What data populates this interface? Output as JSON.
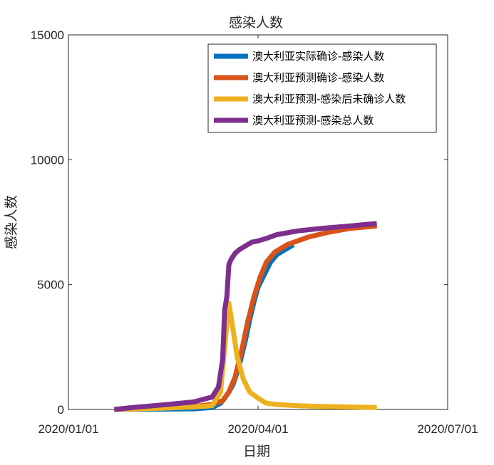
{
  "chart_data": {
    "type": "line",
    "title": "感染人数",
    "xlabel": "日期",
    "ylabel": "感染人数",
    "xlim": [
      "2020-01-01",
      "2020-07-01"
    ],
    "ylim": [
      0,
      15000
    ],
    "xticks": [
      "2020/01/01",
      "2020/04/01",
      "2020/07/01"
    ],
    "yticks": [
      "0",
      "5000",
      "10000",
      "15000"
    ],
    "grid": false,
    "legend_position": "top-right",
    "series": [
      {
        "name": "澳大利亚实际确诊-感染人数",
        "color": "#0072BD",
        "x": [
          "2020-01-23",
          "2020-02-01",
          "2020-02-15",
          "2020-03-01",
          "2020-03-10",
          "2020-03-14",
          "2020-03-16",
          "2020-03-18",
          "2020-03-20",
          "2020-03-22",
          "2020-03-24",
          "2020-03-26",
          "2020-03-28",
          "2020-03-30",
          "2020-04-01",
          "2020-04-04",
          "2020-04-07",
          "2020-04-10",
          "2020-04-13",
          "2020-04-16",
          "2020-04-18"
        ],
        "y": [
          0,
          10,
          15,
          25,
          80,
          250,
          450,
          700,
          1000,
          1500,
          2100,
          2800,
          3600,
          4300,
          4900,
          5400,
          5900,
          6200,
          6350,
          6500,
          6600
        ]
      },
      {
        "name": "澳大利亚预测确诊-感染人数",
        "color": "#D95319",
        "x": [
          "2020-01-23",
          "2020-02-01",
          "2020-02-15",
          "2020-03-01",
          "2020-03-10",
          "2020-03-15",
          "2020-03-18",
          "2020-03-21",
          "2020-03-24",
          "2020-03-27",
          "2020-03-30",
          "2020-04-02",
          "2020-04-05",
          "2020-04-09",
          "2020-04-15",
          "2020-04-25",
          "2020-05-05",
          "2020-05-15",
          "2020-05-28"
        ],
        "y": [
          0,
          20,
          60,
          120,
          200,
          350,
          700,
          1300,
          2300,
          3500,
          4500,
          5300,
          5900,
          6300,
          6600,
          6900,
          7100,
          7250,
          7350
        ]
      },
      {
        "name": "澳大利亚预测-感染后未确诊人数",
        "color": "#EDB120",
        "x": [
          "2020-01-23",
          "2020-02-01",
          "2020-02-15",
          "2020-03-01",
          "2020-03-10",
          "2020-03-14",
          "2020-03-16",
          "2020-03-18",
          "2020-03-20",
          "2020-03-22",
          "2020-03-25",
          "2020-03-28",
          "2020-04-01",
          "2020-04-05",
          "2020-04-10",
          "2020-04-20",
          "2020-05-01",
          "2020-05-15",
          "2020-05-28"
        ],
        "y": [
          0,
          20,
          50,
          100,
          150,
          700,
          2500,
          4250,
          3200,
          2100,
          1200,
          700,
          450,
          250,
          200,
          150,
          120,
          100,
          80
        ]
      },
      {
        "name": "澳大利亚预测-感染总人数",
        "color": "#7E2F8E",
        "x": [
          "2020-01-23",
          "2020-02-01",
          "2020-02-15",
          "2020-03-01",
          "2020-03-10",
          "2020-03-13",
          "2020-03-15",
          "2020-03-16",
          "2020-03-17",
          "2020-03-18",
          "2020-03-19",
          "2020-03-21",
          "2020-03-23",
          "2020-03-26",
          "2020-03-29",
          "2020-04-01",
          "2020-04-05",
          "2020-04-10",
          "2020-04-20",
          "2020-05-01",
          "2020-05-15",
          "2020-05-28"
        ],
        "y": [
          0,
          80,
          180,
          300,
          500,
          900,
          2000,
          4000,
          4500,
          5800,
          6000,
          6250,
          6400,
          6550,
          6700,
          6750,
          6850,
          7000,
          7150,
          7250,
          7350,
          7450
        ]
      }
    ]
  }
}
